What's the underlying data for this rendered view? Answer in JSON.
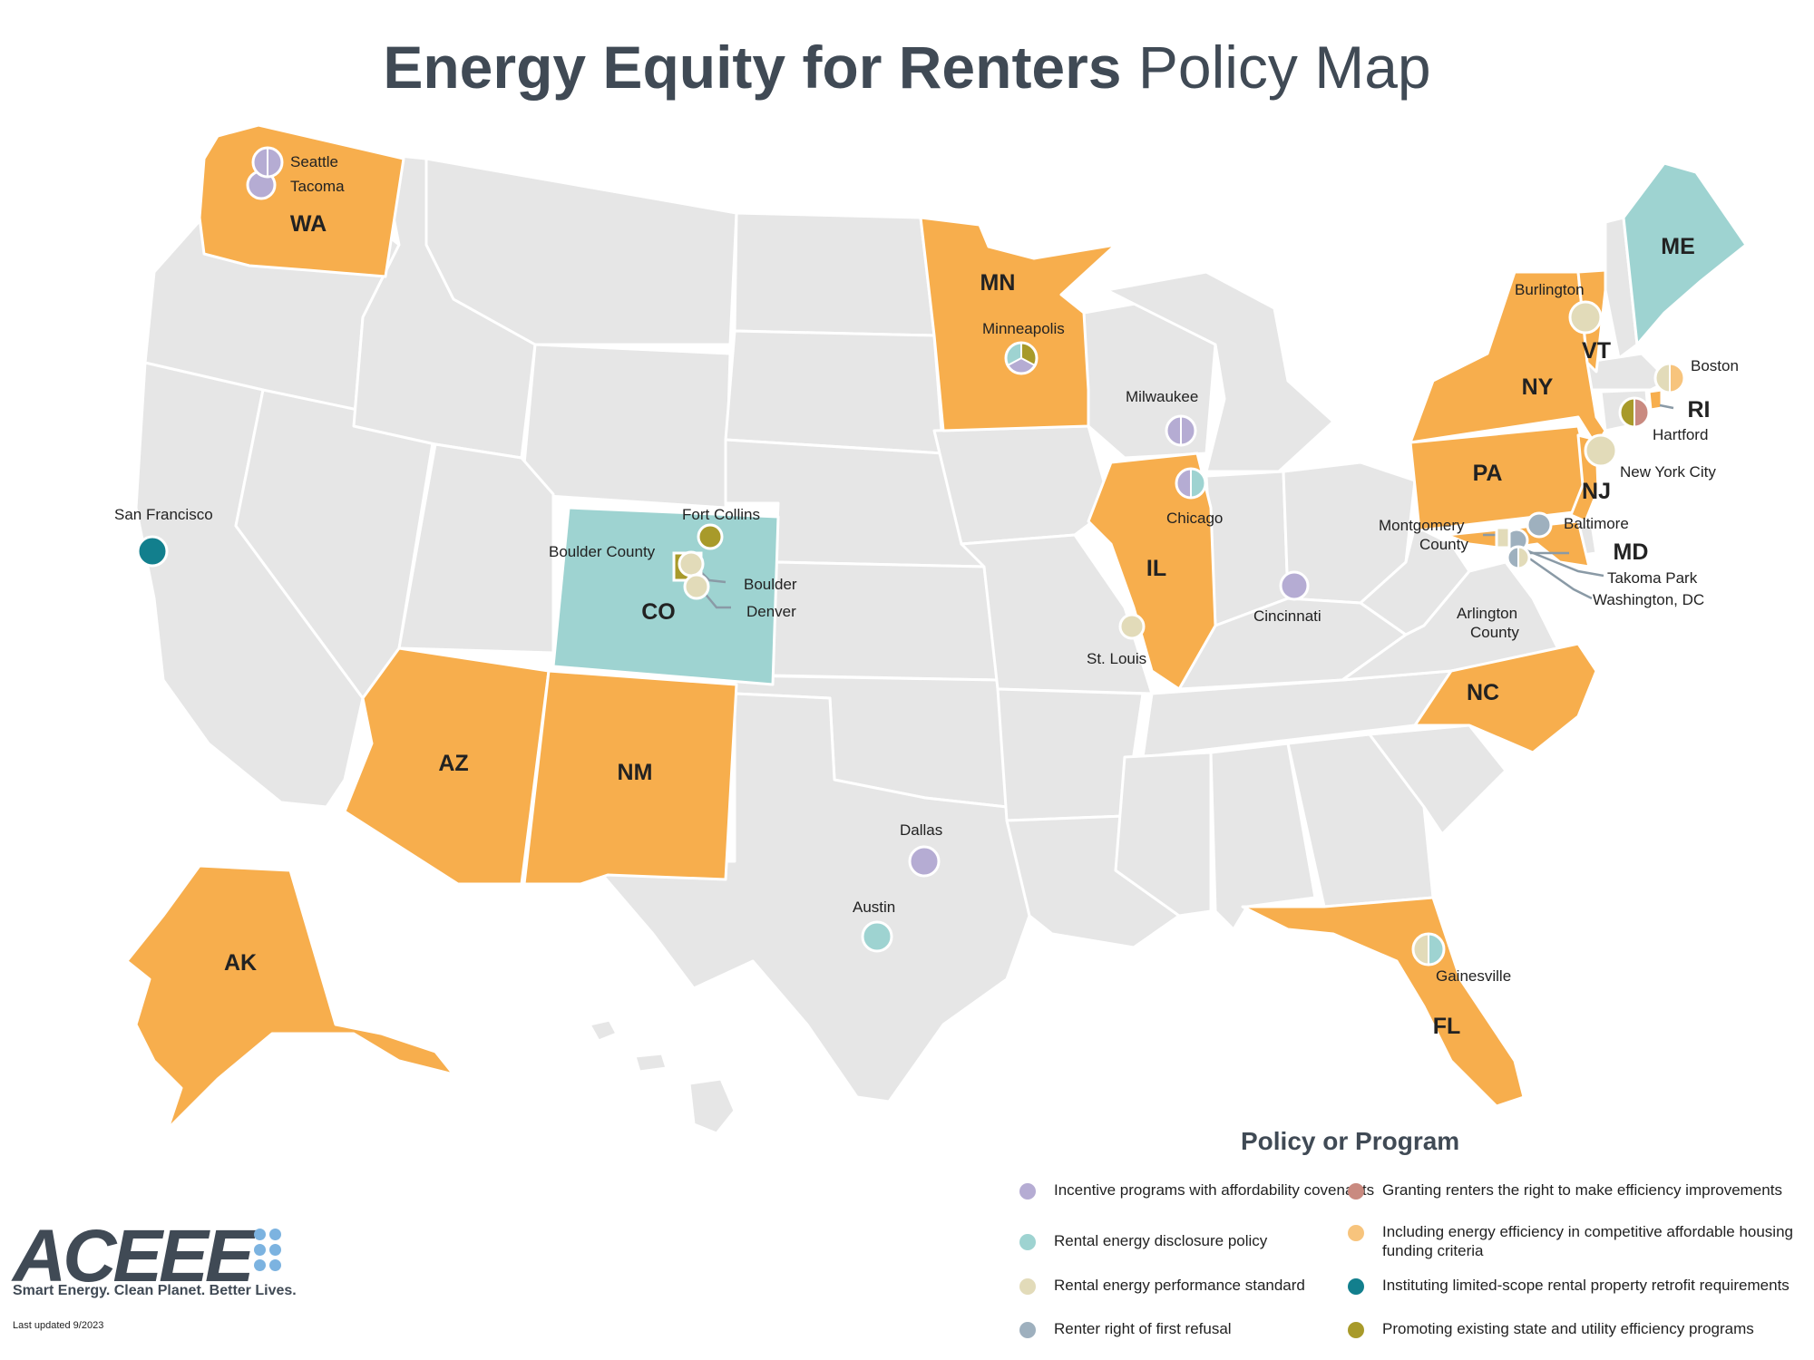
{
  "title_bold": "Energy Equity for Renters",
  "title_light": "Policy Map",
  "colors": {
    "state_default": "#e6e6e6",
    "state_highlight": "#f7ae4d",
    "state_teal": "#9ed3d1",
    "incentive": "#b5acd3",
    "disclosure": "#9ed3d1",
    "performance": "#e2dbb9",
    "first_refusal": "#9eb0be",
    "right_to_improve": "#c98a80",
    "affordable_funding": "#f7c47d",
    "retrofit": "#127f8d",
    "promoting": "#a89a2a"
  },
  "states": {
    "WA": "WA",
    "MN": "MN",
    "CO": "CO",
    "AZ": "AZ",
    "NM": "NM",
    "AK": "AK",
    "IL": "IL",
    "NY": "NY",
    "VT": "VT",
    "ME": "ME",
    "PA": "PA",
    "NJ": "NJ",
    "MD": "MD",
    "NC": "NC",
    "FL": "FL",
    "RI": "RI"
  },
  "cities": {
    "seattle": "Seattle",
    "tacoma": "Tacoma",
    "san_francisco": "San Francisco",
    "fort_collins": "Fort Collins",
    "boulder_county": "Boulder County",
    "boulder": "Boulder",
    "denver": "Denver",
    "minneapolis": "Minneapolis",
    "milwaukee": "Milwaukee",
    "chicago": "Chicago",
    "st_louis": "St. Louis",
    "cincinnati": "Cincinnati",
    "dallas": "Dallas",
    "austin": "Austin",
    "gainesville": "Gainesville",
    "burlington": "Burlington",
    "boston": "Boston",
    "hartford": "Hartford",
    "new_york_city": "New York City",
    "montgomery_county_1": "Montgomery",
    "montgomery_county_2": "County",
    "baltimore": "Baltimore",
    "takoma_park": "Takoma Park",
    "washington_dc": "Washington, DC",
    "arlington_county_1": "Arlington",
    "arlington_county_2": "County"
  },
  "legend": {
    "title": "Policy or Program",
    "items": [
      {
        "label": "Incentive programs with affordability covenants",
        "color": "#b5acd3"
      },
      {
        "label": "Rental energy disclosure policy",
        "color": "#9ed3d1"
      },
      {
        "label": "Rental energy performance standard",
        "color": "#e2dbb9"
      },
      {
        "label": "Renter right of first refusal",
        "color": "#9eb0be"
      },
      {
        "label": "Granting renters the right to make efficiency improvements",
        "color": "#c98a80"
      },
      {
        "label": "Including energy efficiency in competitive affordable housing funding criteria",
        "color": "#f7c47d"
      },
      {
        "label": "Instituting limited-scope rental property retrofit requirements",
        "color": "#127f8d"
      },
      {
        "label": "Promoting existing state and utility efficiency programs",
        "color": "#a89a2a"
      }
    ]
  },
  "logo": {
    "word": "ACEEE",
    "tagline": "Smart Energy. Clean Planet. Better Lives."
  },
  "updated": "Last updated 9/2023"
}
